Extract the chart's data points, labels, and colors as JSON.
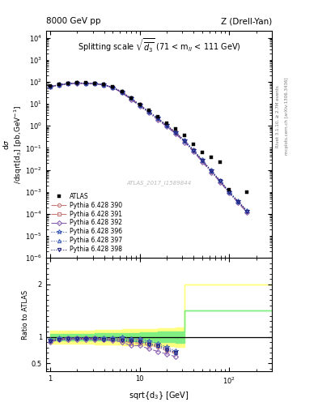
{
  "title_left": "8000 GeV pp",
  "title_right": "Z (Drell-Yan)",
  "panel_title": "Splitting scale $\\sqrt{\\overline{d_3}}$ (71 < m$_{ll}$ < 111 GeV)",
  "watermark": "ATLAS_2017_I1589844",
  "atlas_x": [
    1.0,
    1.26,
    1.58,
    2.0,
    2.51,
    3.16,
    3.98,
    5.01,
    6.31,
    7.94,
    10.0,
    12.59,
    15.85,
    19.95,
    25.12,
    31.62,
    39.81,
    50.12,
    63.1,
    79.43,
    100.0,
    158.49
  ],
  "atlas_y": [
    65,
    75,
    85,
    90,
    88,
    85,
    75,
    58,
    35,
    19,
    9.5,
    5.0,
    2.6,
    1.35,
    0.7,
    0.36,
    0.14,
    0.062,
    0.038,
    0.022,
    0.0013,
    0.00095
  ],
  "atlas_yerr": [
    5,
    5,
    5,
    5,
    4,
    4,
    4,
    3,
    2,
    1.5,
    0.8,
    0.4,
    0.2,
    0.1,
    0.06,
    0.03,
    0.015,
    0.006,
    0.004,
    0.003,
    0.0003,
    0.0002
  ],
  "mc390_x": [
    1.0,
    1.26,
    1.58,
    2.0,
    2.51,
    3.16,
    3.98,
    5.01,
    6.31,
    7.94,
    10.0,
    12.59,
    15.85,
    19.95,
    25.12,
    31.62,
    39.81,
    50.12,
    63.1,
    79.43,
    100.0,
    125.89,
    158.49
  ],
  "mc390_y": [
    60,
    72,
    82,
    87,
    85,
    82,
    72,
    55,
    33,
    17,
    8.5,
    4.2,
    2.1,
    1.0,
    0.48,
    0.2,
    0.075,
    0.025,
    0.0085,
    0.003,
    0.00095,
    0.00035,
    0.000125
  ],
  "mc391_x": [
    1.0,
    1.26,
    1.58,
    2.0,
    2.51,
    3.16,
    3.98,
    5.01,
    6.31,
    7.94,
    10.0,
    12.59,
    15.85,
    19.95,
    25.12,
    31.62,
    39.81,
    50.12,
    63.1,
    79.43,
    100.0,
    125.89,
    158.49
  ],
  "mc391_y": [
    61,
    73,
    83,
    88,
    86,
    83,
    73,
    56,
    34,
    18,
    9.0,
    4.4,
    2.2,
    1.05,
    0.5,
    0.21,
    0.078,
    0.026,
    0.0088,
    0.0031,
    0.00098,
    0.00036,
    0.00013
  ],
  "mc392_x": [
    1.0,
    1.26,
    1.58,
    2.0,
    2.51,
    3.16,
    3.98,
    5.01,
    6.31,
    7.94,
    10.0,
    12.59,
    15.85,
    19.95,
    25.12,
    31.62,
    39.81,
    50.12,
    63.1,
    79.43,
    100.0,
    125.89,
    158.49
  ],
  "mc392_y": [
    59,
    71,
    81,
    86,
    84,
    81,
    71,
    54,
    32,
    16,
    8.0,
    3.9,
    1.9,
    0.92,
    0.44,
    0.18,
    0.068,
    0.023,
    0.0078,
    0.0028,
    0.00088,
    0.00032,
    0.000115
  ],
  "mc396_x": [
    1.0,
    1.26,
    1.58,
    2.0,
    2.51,
    3.16,
    3.98,
    5.01,
    6.31,
    7.94,
    10.0,
    12.59,
    15.85,
    19.95,
    25.12,
    31.62,
    39.81,
    50.12,
    63.1,
    79.43,
    100.0,
    125.89,
    158.49
  ],
  "mc396_y": [
    62,
    74,
    84,
    89,
    87,
    84,
    74,
    57,
    35,
    18.5,
    9.2,
    4.6,
    2.3,
    1.1,
    0.52,
    0.22,
    0.082,
    0.028,
    0.0095,
    0.0033,
    0.00102,
    0.00038,
    0.00014
  ],
  "mc397_x": [
    1.0,
    1.26,
    1.58,
    2.0,
    2.51,
    3.16,
    3.98,
    5.01,
    6.31,
    7.94,
    10.0,
    12.59,
    15.85,
    19.95,
    25.12,
    31.62,
    39.81,
    50.12,
    63.1,
    79.43,
    100.0,
    125.89,
    158.49
  ],
  "mc397_y": [
    61,
    73,
    83,
    88,
    86,
    83,
    73,
    56,
    34,
    18,
    8.8,
    4.4,
    2.2,
    1.05,
    0.5,
    0.21,
    0.079,
    0.027,
    0.009,
    0.0032,
    0.00099,
    0.00037,
    0.000135
  ],
  "mc398_x": [
    1.0,
    1.26,
    1.58,
    2.0,
    2.51,
    3.16,
    3.98,
    5.01,
    6.31,
    7.94,
    10.0,
    12.59,
    15.85,
    19.95,
    25.12,
    31.62,
    39.81,
    50.12,
    63.1,
    79.43,
    100.0,
    125.89,
    158.49
  ],
  "mc398_y": [
    60,
    72,
    82,
    87,
    85,
    82,
    72,
    55,
    33,
    17.5,
    8.6,
    4.3,
    2.15,
    1.02,
    0.49,
    0.205,
    0.077,
    0.026,
    0.0088,
    0.0031,
    0.00096,
    0.00036,
    0.000132
  ],
  "ratio390_x": [
    1.0,
    1.26,
    1.58,
    2.0,
    2.51,
    3.16,
    3.98,
    5.01,
    6.31,
    7.94,
    10.0,
    12.59,
    15.85,
    19.95,
    25.12
  ],
  "ratio390_y": [
    0.92,
    0.96,
    0.96,
    0.97,
    0.97,
    0.97,
    0.96,
    0.95,
    0.94,
    0.89,
    0.89,
    0.84,
    0.81,
    0.74,
    0.69
  ],
  "ratio391_x": [
    1.0,
    1.26,
    1.58,
    2.0,
    2.51,
    3.16,
    3.98,
    5.01,
    6.31,
    7.94,
    10.0,
    12.59,
    15.85,
    19.95,
    25.12
  ],
  "ratio391_y": [
    0.94,
    0.97,
    0.98,
    0.98,
    0.98,
    0.98,
    0.97,
    0.97,
    0.97,
    0.95,
    0.95,
    0.88,
    0.85,
    0.78,
    0.71
  ],
  "ratio392_x": [
    1.0,
    1.26,
    1.58,
    2.0,
    2.51,
    3.16,
    3.98,
    5.01,
    6.31,
    7.94,
    10.0,
    12.59,
    15.85,
    19.95,
    25.12
  ],
  "ratio392_y": [
    0.91,
    0.95,
    0.95,
    0.96,
    0.96,
    0.95,
    0.95,
    0.93,
    0.91,
    0.84,
    0.84,
    0.78,
    0.73,
    0.68,
    0.63
  ],
  "ratio396_x": [
    1.0,
    1.26,
    1.58,
    2.0,
    2.51,
    3.16,
    3.98,
    5.01,
    6.31,
    7.94,
    10.0,
    12.59,
    15.85,
    19.95,
    25.12
  ],
  "ratio396_y": [
    0.95,
    0.99,
    0.99,
    0.99,
    0.99,
    0.99,
    0.99,
    0.98,
    1.0,
    0.97,
    0.97,
    0.92,
    0.88,
    0.81,
    0.74
  ],
  "ratio397_x": [
    1.0,
    1.26,
    1.58,
    2.0,
    2.51,
    3.16,
    3.98,
    5.01,
    6.31,
    7.94,
    10.0,
    12.59,
    15.85,
    19.95,
    25.12
  ],
  "ratio397_y": [
    0.94,
    0.97,
    0.98,
    0.98,
    0.98,
    0.98,
    0.97,
    0.97,
    0.97,
    0.95,
    0.93,
    0.88,
    0.85,
    0.78,
    0.71
  ],
  "ratio398_x": [
    1.0,
    1.26,
    1.58,
    2.0,
    2.51,
    3.16,
    3.98,
    5.01,
    6.31,
    7.94,
    10.0,
    12.59,
    15.85,
    19.95,
    25.12
  ],
  "ratio398_y": [
    0.92,
    0.96,
    0.97,
    0.97,
    0.97,
    0.97,
    0.96,
    0.95,
    0.94,
    0.92,
    0.91,
    0.86,
    0.83,
    0.76,
    0.7
  ],
  "color390": "#c87878",
  "color391": "#c87878",
  "color392": "#8860b0",
  "color396": "#4060b8",
  "color397": "#4060b8",
  "color398": "#202080",
  "ylim_main": [
    1e-06,
    20000.0
  ],
  "ylim_ratio": [
    0.35,
    2.5
  ],
  "xlim": [
    0.9,
    300
  ],
  "band_yellow_edges": [
    1.0,
    3.16,
    6.31,
    10.0,
    15.85,
    25.12,
    31.62,
    300.0
  ],
  "band_yellow_lo": [
    0.88,
    0.86,
    0.85,
    0.84,
    0.83,
    0.82,
    2.0,
    2.0
  ],
  "band_yellow_hi": [
    1.12,
    1.14,
    1.15,
    1.16,
    1.17,
    1.18,
    2.0,
    2.0
  ],
  "band_green_edges": [
    1.0,
    3.16,
    6.31,
    10.0,
    15.85,
    25.12,
    31.62,
    300.0
  ],
  "band_green_lo": [
    0.94,
    0.93,
    0.92,
    0.91,
    0.9,
    0.89,
    1.5,
    1.5
  ],
  "band_green_hi": [
    1.06,
    1.07,
    1.08,
    1.09,
    1.1,
    1.11,
    1.5,
    1.5
  ]
}
